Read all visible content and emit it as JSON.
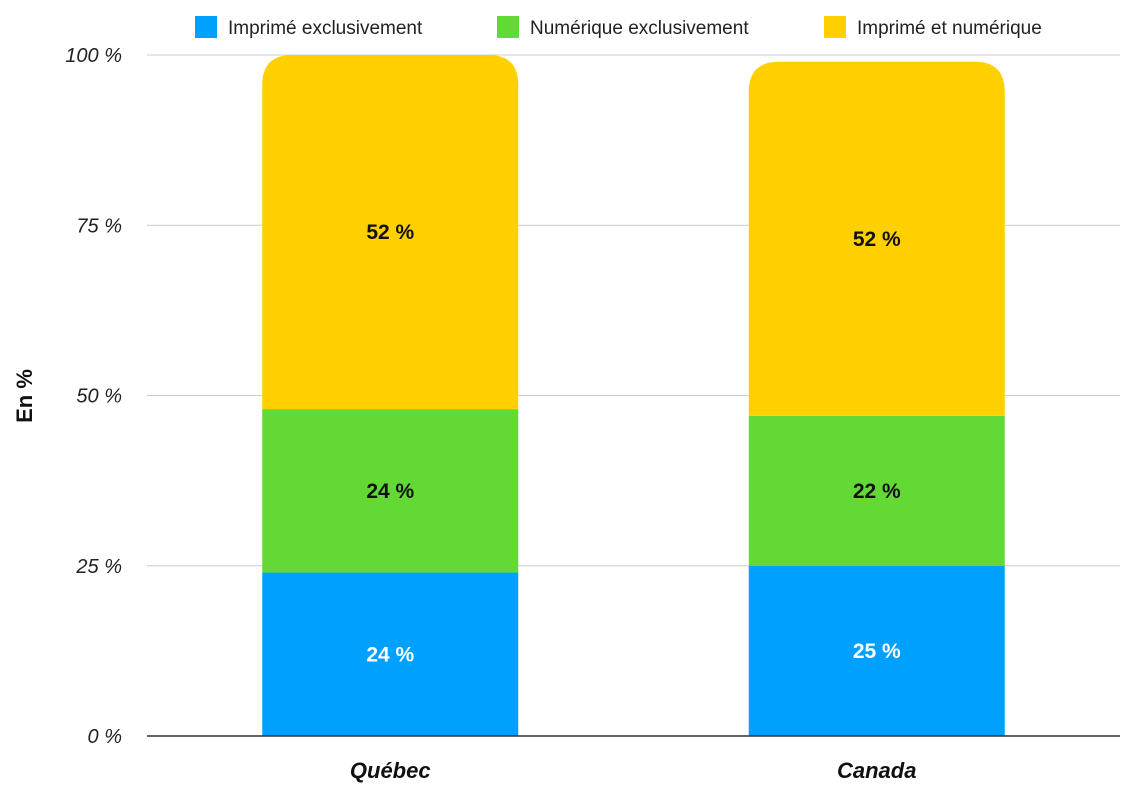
{
  "chart_data": {
    "type": "bar",
    "stacked": true,
    "categories": [
      "Québec",
      "Canada"
    ],
    "series": [
      {
        "name": "Imprimé exclusivement",
        "color": "#00a0ff",
        "values": [
          24,
          25
        ],
        "labels": [
          "24 %",
          "25 %"
        ],
        "label_color": "#ffffff"
      },
      {
        "name": "Numérique exclusivement",
        "color": "#62d935",
        "values": [
          24,
          22
        ],
        "labels": [
          "24 %",
          "22 %"
        ],
        "label_color": "#111111"
      },
      {
        "name": "Imprimé et numérique",
        "color": "#ffd000",
        "values": [
          52,
          52
        ],
        "labels": [
          "52 %",
          "52 %"
        ],
        "label_color": "#111111"
      }
    ],
    "ylabel": "En %",
    "ylim": [
      0,
      100
    ],
    "yticks": [
      0,
      25,
      50,
      75,
      100
    ],
    "ytick_labels": [
      "0 %",
      "25 %",
      "50 %",
      "75 %",
      "100 %"
    ],
    "grid": true,
    "legend_position": "top"
  }
}
